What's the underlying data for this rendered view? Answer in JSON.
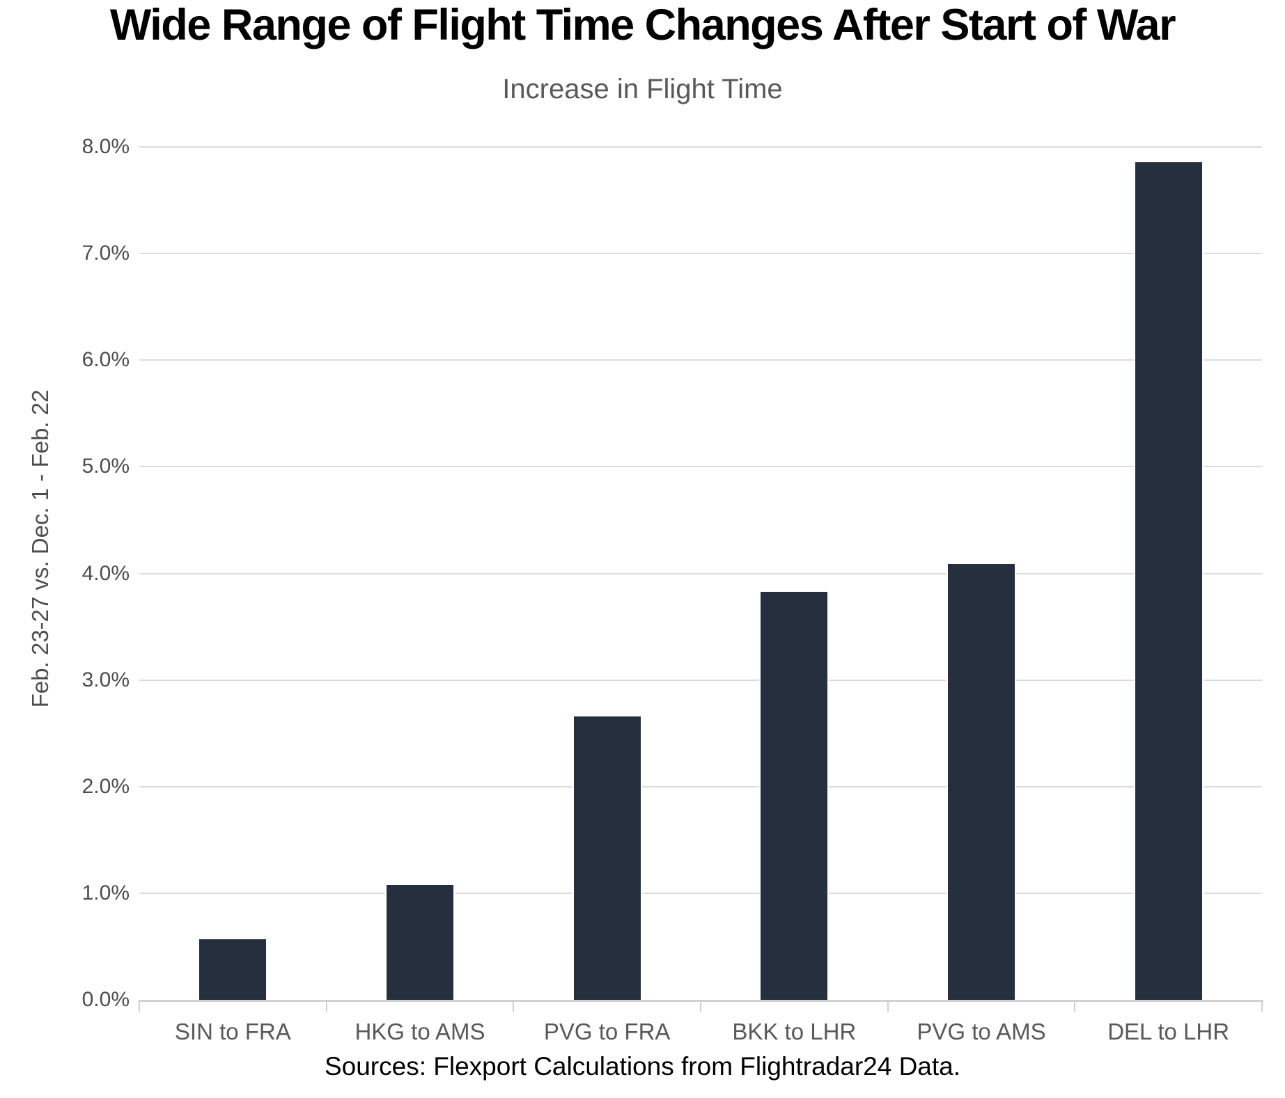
{
  "header": {
    "title": "Wide Range of Flight Time Changes After Start of War"
  },
  "chart_data": {
    "type": "bar",
    "title": "Increase in Flight Time",
    "categories": [
      "SIN to FRA",
      "HKG to AMS",
      "PVG to FRA",
      "BKK to LHR",
      "PVG to AMS",
      "DEL to LHR"
    ],
    "values": [
      0.58,
      1.09,
      2.67,
      3.84,
      4.1,
      7.87
    ],
    "value_unit": "percent",
    "xlabel": "",
    "ylabel": "Feb. 23-27 vs. Dec. 1 - Feb. 22",
    "ylim": [
      0,
      8
    ],
    "ytick_labels": [
      "0.0%",
      "1.0%",
      "2.0%",
      "3.0%",
      "4.0%",
      "5.0%",
      "6.0%",
      "7.0%",
      "8.0%"
    ],
    "grid": true,
    "legend": false,
    "bar_color": "#262f3d"
  },
  "footer": {
    "source": "Sources: Flexport Calculations from Flightradar24 Data."
  }
}
